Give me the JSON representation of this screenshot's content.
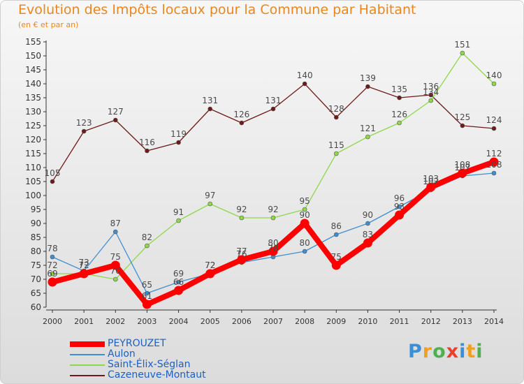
{
  "title": "Evolution des Impôts locaux pour la Commune par Habitant",
  "subtitle": "(en € et par an)",
  "logo": {
    "text": "Proxiti",
    "letters": [
      "P",
      "r",
      "o",
      "x",
      "i",
      "t",
      "i"
    ],
    "colors": [
      "#3a8fd6",
      "#f0a020",
      "#4fb04f",
      "#e84030",
      "#3a8fd6",
      "#f0a020",
      "#4fb04f"
    ]
  },
  "chart_data": {
    "type": "line",
    "x": [
      "2000",
      "2001",
      "2002",
      "2003",
      "2004",
      "2005",
      "2006",
      "2007",
      "2008",
      "2009",
      "2010",
      "2011",
      "2012",
      "2013",
      "2014"
    ],
    "ylim": [
      60,
      155
    ],
    "ytick_step": 5,
    "grid": false,
    "legend_position": "bottom-left",
    "series": [
      {
        "name": "PEYROUZET",
        "color": "#ff0000",
        "values": [
          69,
          72,
          75,
          61,
          66,
          72,
          77,
          80,
          90,
          75,
          83,
          93,
          103,
          108,
          112
        ],
        "labels": [
          "69",
          "72",
          "75",
          "61",
          "66",
          "72",
          "77",
          "80",
          "90",
          "75",
          "83",
          "93",
          "103",
          "108",
          "112"
        ]
      },
      {
        "name": "Aulon",
        "color": "#3f8ed0",
        "values": [
          78,
          73,
          87,
          65,
          69,
          72,
          76,
          78,
          80,
          86,
          90,
          96,
          102,
          107,
          108
        ],
        "labels": [
          "78",
          "73",
          "87",
          "65",
          "69",
          "72",
          "76",
          "78",
          "80",
          "86",
          "90",
          "96",
          "102",
          "107",
          "108"
        ]
      },
      {
        "name": "Saint-Élix-Séglan",
        "color": "#8ed84a",
        "values": [
          72,
          72,
          70,
          82,
          91,
          97,
          92,
          92,
          95,
          115,
          121,
          126,
          134,
          151,
          140
        ],
        "labels": [
          "72",
          "72",
          "70",
          "82",
          "91",
          "97",
          "92",
          "92",
          "95",
          "115",
          "121",
          "126",
          "134",
          "151",
          "140"
        ]
      },
      {
        "name": "Cazeneuve-Montaut",
        "color": "#6e1a1a",
        "values": [
          105,
          123,
          127,
          116,
          119,
          131,
          126,
          131,
          140,
          128,
          139,
          135,
          136,
          125,
          124
        ],
        "labels": [
          "105",
          "123",
          "127",
          "116",
          "119",
          "131",
          "126",
          "131",
          "140",
          "128",
          "139",
          "135",
          "136",
          "125",
          "124"
        ]
      }
    ]
  }
}
